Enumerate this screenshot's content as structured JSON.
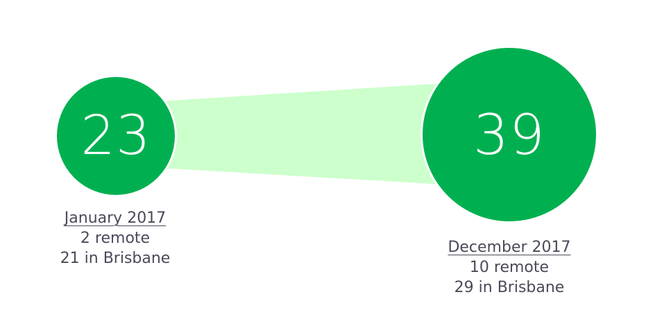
{
  "start": {
    "count": "23",
    "date": "January 2017",
    "remote": "2 remote",
    "local": "21 in Brisbane"
  },
  "end": {
    "count": "39",
    "date": "December 2017",
    "remote": "10 remote",
    "local": "29 in Brisbane"
  },
  "colors": {
    "circle": "#00b050",
    "connector": "#ccffcc",
    "text": "#4a4a5a"
  }
}
